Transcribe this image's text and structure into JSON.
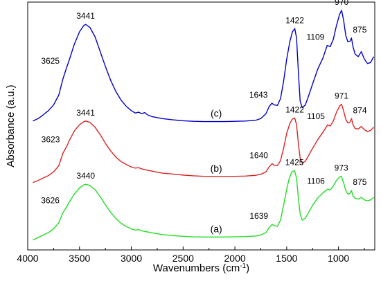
{
  "chart_data": {
    "type": "line",
    "xlabel": "Wavenumbers (cm",
    "xlabel_sup": "-1",
    "xlabel_end": ")",
    "ylabel": "Absorbance (a.u.)",
    "xlim": [
      4000,
      650
    ],
    "x_reversed": true,
    "ylim": [
      0,
      1
    ],
    "x_ticks": [
      4000,
      3500,
      3000,
      2500,
      2000,
      1500,
      1000
    ],
    "x_tick_labels": [
      "4000",
      "3500",
      "3000",
      "2500",
      "2000",
      "1500",
      "1000"
    ],
    "grid": false,
    "series": [
      {
        "label": "(c)",
        "color": "#0000cc",
        "points": [
          [
            3950,
            0.52
          ],
          [
            3900,
            0.53
          ],
          [
            3850,
            0.545
          ],
          [
            3800,
            0.562
          ],
          [
            3750,
            0.585
          ],
          [
            3700,
            0.625
          ],
          [
            3660,
            0.69
          ],
          [
            3625,
            0.735
          ],
          [
            3600,
            0.765
          ],
          [
            3550,
            0.83
          ],
          [
            3500,
            0.88
          ],
          [
            3460,
            0.905
          ],
          [
            3441,
            0.91
          ],
          [
            3400,
            0.898
          ],
          [
            3350,
            0.86
          ],
          [
            3300,
            0.8
          ],
          [
            3250,
            0.74
          ],
          [
            3200,
            0.685
          ],
          [
            3150,
            0.64
          ],
          [
            3100,
            0.605
          ],
          [
            3050,
            0.58
          ],
          [
            3000,
            0.562
          ],
          [
            2960,
            0.552
          ],
          [
            2930,
            0.556
          ],
          [
            2900,
            0.55
          ],
          [
            2870,
            0.554
          ],
          [
            2840,
            0.544
          ],
          [
            2800,
            0.538
          ],
          [
            2700,
            0.53
          ],
          [
            2600,
            0.525
          ],
          [
            2500,
            0.521
          ],
          [
            2400,
            0.519
          ],
          [
            2300,
            0.518
          ],
          [
            2200,
            0.518
          ],
          [
            2100,
            0.518
          ],
          [
            2000,
            0.519
          ],
          [
            1900,
            0.52
          ],
          [
            1800,
            0.523
          ],
          [
            1750,
            0.53
          ],
          [
            1700,
            0.55
          ],
          [
            1670,
            0.578
          ],
          [
            1643,
            0.592
          ],
          [
            1620,
            0.585
          ],
          [
            1590,
            0.583
          ],
          [
            1560,
            0.61
          ],
          [
            1530,
            0.68
          ],
          [
            1500,
            0.77
          ],
          [
            1470,
            0.84
          ],
          [
            1445,
            0.88
          ],
          [
            1422,
            0.893
          ],
          [
            1405,
            0.855
          ],
          [
            1385,
            0.7
          ],
          [
            1370,
            0.6
          ],
          [
            1350,
            0.574
          ],
          [
            1320,
            0.585
          ],
          [
            1290,
            0.62
          ],
          [
            1250,
            0.67
          ],
          [
            1200,
            0.73
          ],
          [
            1150,
            0.775
          ],
          [
            1109,
            0.825
          ],
          [
            1080,
            0.82
          ],
          [
            1050,
            0.85
          ],
          [
            1020,
            0.905
          ],
          [
            990,
            0.95
          ],
          [
            970,
            0.967
          ],
          [
            950,
            0.925
          ],
          [
            930,
            0.865
          ],
          [
            910,
            0.84
          ],
          [
            890,
            0.842
          ],
          [
            875,
            0.855
          ],
          [
            860,
            0.82
          ],
          [
            840,
            0.79
          ],
          [
            810,
            0.78
          ],
          [
            780,
            0.8
          ],
          [
            750,
            0.77
          ],
          [
            720,
            0.752
          ],
          [
            690,
            0.756
          ],
          [
            660,
            0.78
          ]
        ]
      },
      {
        "label": "(b)",
        "color": "#dd2222",
        "points": [
          [
            3950,
            0.272
          ],
          [
            3900,
            0.28
          ],
          [
            3850,
            0.29
          ],
          [
            3800,
            0.3
          ],
          [
            3750,
            0.315
          ],
          [
            3700,
            0.34
          ],
          [
            3660,
            0.39
          ],
          [
            3623,
            0.418
          ],
          [
            3600,
            0.44
          ],
          [
            3550,
            0.48
          ],
          [
            3500,
            0.505
          ],
          [
            3460,
            0.517
          ],
          [
            3441,
            0.52
          ],
          [
            3400,
            0.515
          ],
          [
            3350,
            0.495
          ],
          [
            3300,
            0.465
          ],
          [
            3250,
            0.43
          ],
          [
            3200,
            0.4
          ],
          [
            3150,
            0.375
          ],
          [
            3100,
            0.357
          ],
          [
            3050,
            0.345
          ],
          [
            3000,
            0.335
          ],
          [
            2960,
            0.33
          ],
          [
            2930,
            0.332
          ],
          [
            2900,
            0.327
          ],
          [
            2850,
            0.322
          ],
          [
            2800,
            0.318
          ],
          [
            2700,
            0.31
          ],
          [
            2600,
            0.306
          ],
          [
            2500,
            0.302
          ],
          [
            2400,
            0.299
          ],
          [
            2300,
            0.297
          ],
          [
            2200,
            0.296
          ],
          [
            2100,
            0.296
          ],
          [
            2000,
            0.297
          ],
          [
            1900,
            0.298
          ],
          [
            1800,
            0.301
          ],
          [
            1750,
            0.305
          ],
          [
            1700,
            0.315
          ],
          [
            1670,
            0.335
          ],
          [
            1640,
            0.348
          ],
          [
            1620,
            0.342
          ],
          [
            1590,
            0.34
          ],
          [
            1560,
            0.36
          ],
          [
            1530,
            0.41
          ],
          [
            1500,
            0.47
          ],
          [
            1470,
            0.51
          ],
          [
            1445,
            0.528
          ],
          [
            1422,
            0.532
          ],
          [
            1405,
            0.505
          ],
          [
            1385,
            0.42
          ],
          [
            1370,
            0.37
          ],
          [
            1350,
            0.35
          ],
          [
            1320,
            0.358
          ],
          [
            1290,
            0.38
          ],
          [
            1250,
            0.41
          ],
          [
            1200,
            0.445
          ],
          [
            1150,
            0.475
          ],
          [
            1105,
            0.505
          ],
          [
            1080,
            0.5
          ],
          [
            1050,
            0.52
          ],
          [
            1020,
            0.555
          ],
          [
            990,
            0.58
          ],
          [
            971,
            0.588
          ],
          [
            950,
            0.56
          ],
          [
            930,
            0.527
          ],
          [
            910,
            0.512
          ],
          [
            890,
            0.515
          ],
          [
            874,
            0.53
          ],
          [
            860,
            0.505
          ],
          [
            840,
            0.49
          ],
          [
            810,
            0.488
          ],
          [
            780,
            0.498
          ],
          [
            750,
            0.485
          ],
          [
            720,
            0.478
          ],
          [
            690,
            0.482
          ],
          [
            660,
            0.495
          ]
        ]
      },
      {
        "label": "(a)",
        "color": "#22dd22",
        "points": [
          [
            3950,
            0.04
          ],
          [
            3900,
            0.05
          ],
          [
            3850,
            0.06
          ],
          [
            3800,
            0.07
          ],
          [
            3750,
            0.085
          ],
          [
            3700,
            0.11
          ],
          [
            3660,
            0.15
          ],
          [
            3626,
            0.172
          ],
          [
            3600,
            0.192
          ],
          [
            3550,
            0.225
          ],
          [
            3500,
            0.25
          ],
          [
            3460,
            0.262
          ],
          [
            3440,
            0.265
          ],
          [
            3400,
            0.26
          ],
          [
            3350,
            0.243
          ],
          [
            3300,
            0.215
          ],
          [
            3250,
            0.182
          ],
          [
            3200,
            0.152
          ],
          [
            3150,
            0.127
          ],
          [
            3100,
            0.108
          ],
          [
            3050,
            0.095
          ],
          [
            3000,
            0.085
          ],
          [
            2960,
            0.08
          ],
          [
            2930,
            0.082
          ],
          [
            2900,
            0.077
          ],
          [
            2850,
            0.073
          ],
          [
            2800,
            0.069
          ],
          [
            2700,
            0.062
          ],
          [
            2600,
            0.058
          ],
          [
            2500,
            0.055
          ],
          [
            2400,
            0.053
          ],
          [
            2300,
            0.052
          ],
          [
            2200,
            0.052
          ],
          [
            2100,
            0.052
          ],
          [
            2000,
            0.053
          ],
          [
            1900,
            0.054
          ],
          [
            1800,
            0.056
          ],
          [
            1750,
            0.06
          ],
          [
            1700,
            0.07
          ],
          [
            1670,
            0.09
          ],
          [
            1639,
            0.103
          ],
          [
            1620,
            0.098
          ],
          [
            1590,
            0.095
          ],
          [
            1560,
            0.12
          ],
          [
            1530,
            0.18
          ],
          [
            1500,
            0.245
          ],
          [
            1475,
            0.29
          ],
          [
            1450,
            0.315
          ],
          [
            1425,
            0.32
          ],
          [
            1405,
            0.29
          ],
          [
            1385,
            0.2
          ],
          [
            1370,
            0.145
          ],
          [
            1350,
            0.12
          ],
          [
            1320,
            0.128
          ],
          [
            1290,
            0.15
          ],
          [
            1250,
            0.18
          ],
          [
            1200,
            0.21
          ],
          [
            1150,
            0.23
          ],
          [
            1106,
            0.245
          ],
          [
            1080,
            0.242
          ],
          [
            1050,
            0.258
          ],
          [
            1020,
            0.28
          ],
          [
            990,
            0.294
          ],
          [
            973,
            0.298
          ],
          [
            950,
            0.27
          ],
          [
            930,
            0.24
          ],
          [
            910,
            0.225
          ],
          [
            890,
            0.228
          ],
          [
            875,
            0.24
          ],
          [
            860,
            0.218
          ],
          [
            840,
            0.208
          ],
          [
            810,
            0.205
          ],
          [
            780,
            0.212
          ],
          [
            750,
            0.202
          ],
          [
            720,
            0.198
          ],
          [
            690,
            0.202
          ],
          [
            660,
            0.212
          ]
        ]
      }
    ],
    "peak_labels": [
      {
        "text": "3625",
        "x": 3625,
        "y": 0.735,
        "series": 0
      },
      {
        "text": "3441",
        "x": 3441,
        "y": 0.91,
        "series": 0
      },
      {
        "text": "1643",
        "x": 1643,
        "y": 0.592,
        "series": 0
      },
      {
        "text": "1422",
        "x": 1422,
        "y": 0.893,
        "series": 0
      },
      {
        "text": "1109",
        "x": 1109,
        "y": 0.825,
        "series": 0
      },
      {
        "text": "970",
        "x": 970,
        "y": 0.967,
        "series": 0
      },
      {
        "text": "875",
        "x": 875,
        "y": 0.855,
        "series": 0
      },
      {
        "text": "3623",
        "x": 3623,
        "y": 0.418,
        "series": 1
      },
      {
        "text": "3441",
        "x": 3441,
        "y": 0.52,
        "series": 1
      },
      {
        "text": "1640",
        "x": 1640,
        "y": 0.348,
        "series": 1
      },
      {
        "text": "1422",
        "x": 1422,
        "y": 0.532,
        "series": 1
      },
      {
        "text": "1105",
        "x": 1105,
        "y": 0.505,
        "series": 1
      },
      {
        "text": "971",
        "x": 971,
        "y": 0.588,
        "series": 1
      },
      {
        "text": "874",
        "x": 874,
        "y": 0.53,
        "series": 1
      },
      {
        "text": "3626",
        "x": 3626,
        "y": 0.172,
        "series": 2
      },
      {
        "text": "3440",
        "x": 3440,
        "y": 0.265,
        "series": 2
      },
      {
        "text": "1639",
        "x": 1639,
        "y": 0.103,
        "series": 2
      },
      {
        "text": "1425",
        "x": 1425,
        "y": 0.32,
        "series": 2
      },
      {
        "text": "1106",
        "x": 1106,
        "y": 0.245,
        "series": 2
      },
      {
        "text": "973",
        "x": 973,
        "y": 0.298,
        "series": 2
      },
      {
        "text": "875",
        "x": 875,
        "y": 0.24,
        "series": 2
      }
    ]
  }
}
